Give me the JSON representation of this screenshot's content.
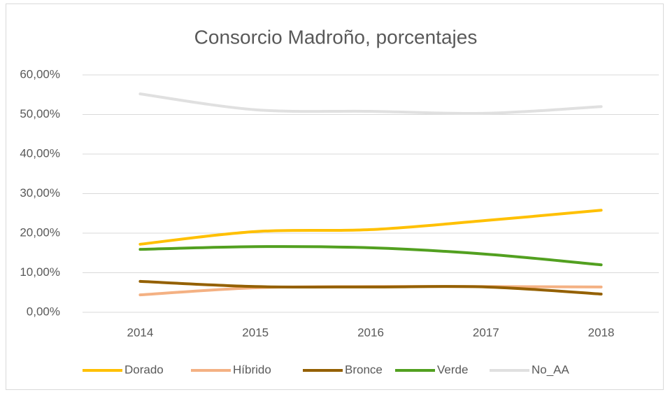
{
  "chart_data": {
    "type": "line",
    "title": "Consorcio Madroño, porcentajes",
    "categories": [
      "2014",
      "2015",
      "2016",
      "2017",
      "2018"
    ],
    "series": [
      {
        "name": "Dorado",
        "color": "#ffc000",
        "values": [
          17.2,
          20.4,
          20.9,
          23.2,
          25.8
        ]
      },
      {
        "name": "Híbrido",
        "color": "#f4b183",
        "values": [
          4.4,
          6.2,
          6.5,
          6.5,
          6.4
        ]
      },
      {
        "name": "Bronce",
        "color": "#946000",
        "values": [
          7.8,
          6.5,
          6.4,
          6.4,
          4.6
        ]
      },
      {
        "name": "Verde",
        "color": "#52a020",
        "values": [
          15.9,
          16.6,
          16.3,
          14.7,
          12.0
        ]
      },
      {
        "name": "No_AA",
        "color": "#e0e0e0",
        "values": [
          55.2,
          51.2,
          50.8,
          50.3,
          52.0
        ]
      }
    ],
    "ylim": [
      0,
      60
    ],
    "yticks": [
      {
        "value": 0,
        "label": "0,00%"
      },
      {
        "value": 10,
        "label": "10,00%"
      },
      {
        "value": 20,
        "label": "20,00%"
      },
      {
        "value": 30,
        "label": "30,00%"
      },
      {
        "value": 40,
        "label": "40,00%"
      },
      {
        "value": 50,
        "label": "50,00%"
      },
      {
        "value": 60,
        "label": "60,00%"
      }
    ],
    "grid": true,
    "legend": "bottom"
  }
}
